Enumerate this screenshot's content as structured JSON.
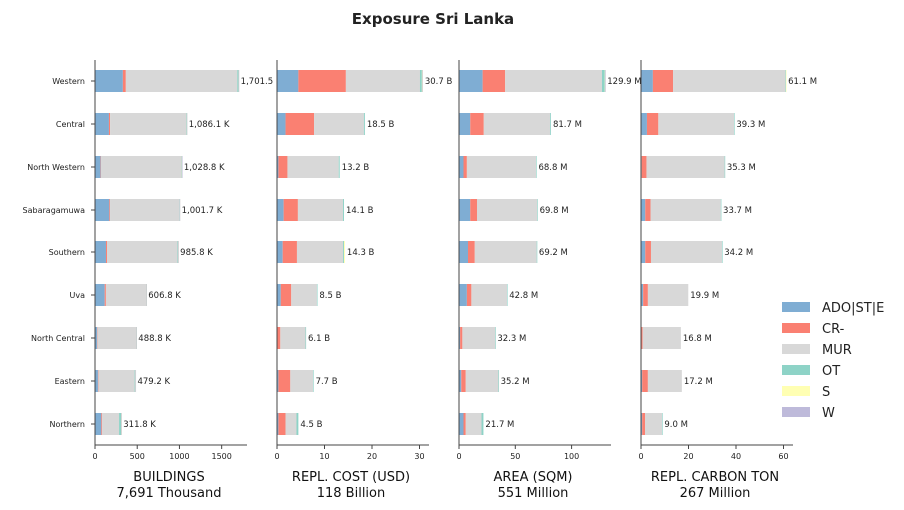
{
  "chart_data": {
    "type": "bar",
    "orientation": "horizontal",
    "stacked": true,
    "title": "Exposure Sri Lanka",
    "categories": [
      "Western",
      "Central",
      "North Western",
      "Sabaragamuwa",
      "Southern",
      "Uva",
      "North Central",
      "Eastern",
      "Northern"
    ],
    "legend": {
      "placement": "right",
      "items": [
        {
          "name": "ADO|ST|E",
          "color": "#7fadd3"
        },
        {
          "name": "CR-",
          "color": "#fa8072"
        },
        {
          "name": "MUR",
          "color": "#d8d8d8"
        },
        {
          "name": "OT",
          "color": "#8ed3c7"
        },
        {
          "name": "S",
          "color": "#ffffb3"
        },
        {
          "name": "W",
          "color": "#bebada"
        }
      ]
    },
    "panels": [
      {
        "xlabel": "BUILDINGS",
        "sublabel": "7,691 Thousand",
        "xlim": [
          0,
          1800
        ],
        "xticks": [
          0,
          500,
          1000,
          1500
        ],
        "tick_labels": [
          "0",
          "500",
          "1000",
          "1500"
        ],
        "totals_labels": [
          "1,701.5 K",
          "1,086.1 K",
          "1,028.8 K",
          "1,001.7 K",
          "985.8 K",
          "606.8 K",
          "488.8 K",
          "479.2 K",
          "311.8 K"
        ],
        "segments": [
          [
            330,
            35,
            1320,
            14,
            2,
            0.5
          ],
          [
            165,
            14,
            900,
            6,
            1,
            0.2
          ],
          [
            65,
            4,
            955,
            4,
            1,
            0.1
          ],
          [
            170,
            8,
            820,
            3,
            1,
            0.1
          ],
          [
            130,
            12,
            835,
            6,
            2,
            0.1
          ],
          [
            115,
            14,
            475,
            2,
            1,
            0.1
          ],
          [
            25,
            3,
            458,
            2,
            1,
            0.1
          ],
          [
            35,
            4,
            430,
            8,
            2,
            0.1
          ],
          [
            75,
            10,
            200,
            24,
            2,
            0.1
          ]
        ]
      },
      {
        "xlabel": "REPL. COST (USD)",
        "sublabel": "118 Billion",
        "xlim": [
          0,
          32
        ],
        "xticks": [
          0,
          10,
          20,
          30
        ],
        "tick_labels": [
          "0",
          "10",
          "20",
          "30"
        ],
        "totals_labels": [
          "30.7 B",
          "18.5 B",
          "13.2 B",
          "14.1 B",
          "14.3 B",
          "8.5 B",
          "6.1 B",
          "7.7 B",
          "4.5 B"
        ],
        "segments": [
          [
            4.5,
            10.0,
            15.6,
            0.4,
            0.1,
            0.1
          ],
          [
            1.8,
            6.0,
            10.5,
            0.2,
            0.0,
            0.0
          ],
          [
            0.3,
            1.9,
            10.8,
            0.2,
            0.0,
            0.0
          ],
          [
            1.4,
            3.0,
            9.5,
            0.2,
            0.0,
            0.0
          ],
          [
            1.2,
            3.0,
            9.7,
            0.2,
            0.2,
            0.0
          ],
          [
            0.8,
            2.2,
            5.4,
            0.1,
            0.0,
            0.0
          ],
          [
            0.1,
            0.6,
            5.3,
            0.1,
            0.0,
            0.0
          ],
          [
            0.3,
            2.5,
            4.8,
            0.1,
            0.0,
            0.0
          ],
          [
            0.3,
            1.5,
            2.3,
            0.4,
            0.0,
            0.0
          ]
        ]
      },
      {
        "xlabel": "AREA (SQM)",
        "sublabel": "551 Million",
        "xlim": [
          0,
          135
        ],
        "xticks": [
          0,
          50,
          100
        ],
        "tick_labels": [
          "0",
          "50",
          "100"
        ],
        "totals_labels": [
          "129.9 M",
          "81.7 M",
          "68.8 M",
          "69.8 M",
          "69.2 M",
          "42.8 M",
          "32.3 M",
          "35.2 M",
          "21.7 M"
        ],
        "segments": [
          [
            21,
            20,
            86,
            2.5,
            0.3,
            0.1
          ],
          [
            10,
            12,
            59,
            0.7,
            0.0,
            0.0
          ],
          [
            4,
            3,
            61.5,
            0.3,
            0.0,
            0.0
          ],
          [
            10,
            6,
            53.5,
            0.3,
            0.0,
            0.0
          ],
          [
            8,
            6,
            55,
            0.2,
            0.0,
            0.0
          ],
          [
            7,
            4,
            31.6,
            0.2,
            0.0,
            0.0
          ],
          [
            1,
            2,
            29.2,
            0.1,
            0.0,
            0.0
          ],
          [
            2,
            4,
            29,
            0.2,
            0.0,
            0.0
          ],
          [
            4,
            2,
            14,
            1.7,
            0.0,
            0.0
          ]
        ]
      },
      {
        "xlabel": "REPL. CARBON TON",
        "sublabel": "267 Million",
        "xlim": [
          0,
          64
        ],
        "xticks": [
          0,
          20,
          40,
          60
        ],
        "tick_labels": [
          "0",
          "20",
          "40",
          "60"
        ],
        "totals_labels": [
          "61.1 M",
          "39.3 M",
          "35.3 M",
          "33.7 M",
          "34.2 M",
          "19.9 M",
          "16.8 M",
          "17.2 M",
          "9.0 M"
        ],
        "segments": [
          [
            5,
            8.5,
            47.3,
            0.2,
            0.1,
            0.0
          ],
          [
            2.5,
            4.8,
            31.9,
            0.1,
            0.0,
            0.0
          ],
          [
            0.3,
            2,
            32.9,
            0.1,
            0.0,
            0.0
          ],
          [
            1.8,
            2.2,
            29.6,
            0.1,
            0.0,
            0.0
          ],
          [
            1.8,
            2.4,
            29.9,
            0.1,
            0.0,
            0.0
          ],
          [
            0.9,
            2,
            17,
            0.0,
            0.0,
            0.0
          ],
          [
            0.2,
            0.5,
            16.1,
            0.0,
            0.0,
            0.0
          ],
          [
            0.5,
            2.4,
            14.3,
            0.0,
            0.0,
            0.0
          ],
          [
            0.5,
            1.2,
            7.2,
            0.1,
            0.0,
            0.0
          ]
        ]
      }
    ]
  }
}
